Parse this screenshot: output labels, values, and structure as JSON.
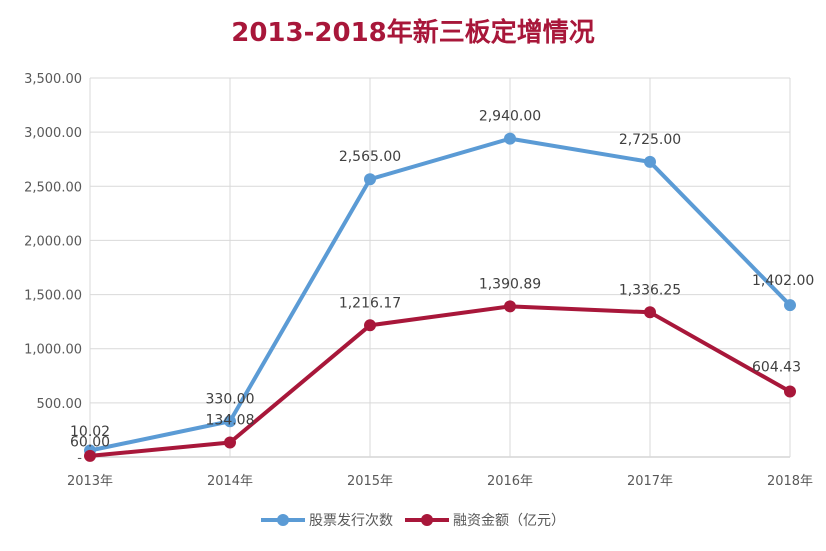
{
  "chart_data": {
    "type": "line",
    "title": "2013-2018年新三板定增情况",
    "categories": [
      "2013年",
      "2014年",
      "2015年",
      "2016年",
      "2017年",
      "2018年"
    ],
    "ylim": [
      0,
      3500
    ],
    "yticks": [
      0,
      500,
      1000,
      1500,
      2000,
      2500,
      3000,
      3500
    ],
    "ytick_labels": [
      "-",
      "500.00",
      "1,000.00",
      "1,500.00",
      "2,000.00",
      "2,500.00",
      "3,000.00",
      "3,500.00"
    ],
    "grid": true,
    "legend_position": "bottom",
    "series": [
      {
        "name": "股票发行次数",
        "color": "#5b9bd5",
        "values": [
          60,
          330,
          2565,
          2940,
          2725,
          1402
        ],
        "labels": [
          "60.00",
          "330.00",
          "2,565.00",
          "2,940.00",
          "2,725.00",
          "1,402.00"
        ]
      },
      {
        "name": "融资金额（亿元）",
        "color": "#a8173a",
        "values": [
          10.02,
          134.08,
          1216.17,
          1390.89,
          1336.25,
          604.43
        ],
        "labels": [
          "10.02",
          "134.08",
          "1,216.17",
          "1,390.89",
          "1,336.25",
          "604.43"
        ]
      }
    ]
  }
}
